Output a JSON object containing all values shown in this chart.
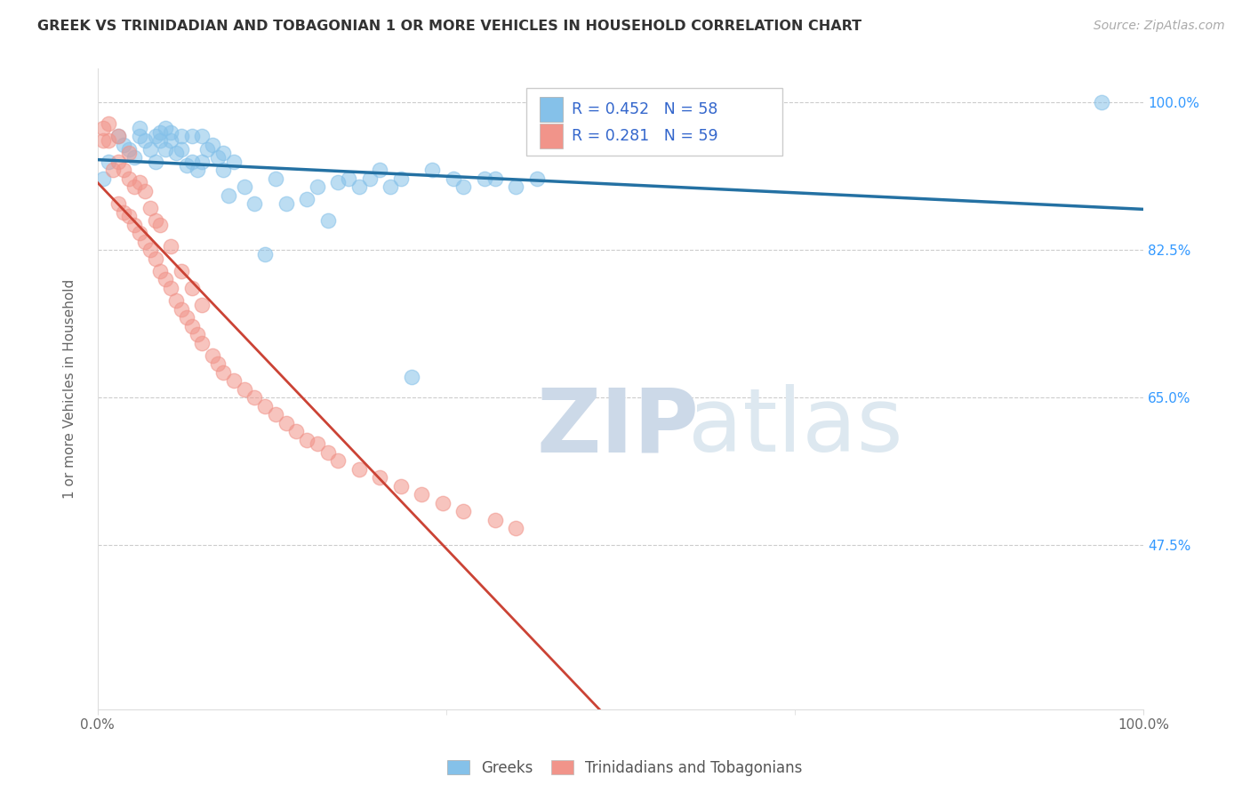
{
  "title": "GREEK VS TRINIDADIAN AND TOBAGONIAN 1 OR MORE VEHICLES IN HOUSEHOLD CORRELATION CHART",
  "source": "Source: ZipAtlas.com",
  "ylabel": "1 or more Vehicles in Household",
  "xlabel": "",
  "xlim": [
    0.0,
    1.0
  ],
  "ylim": [
    0.28,
    1.04
  ],
  "xtick_positions": [
    0.0,
    1.0
  ],
  "xtick_labels": [
    "0.0%",
    "100.0%"
  ],
  "ytick_positions": [
    0.475,
    0.65,
    0.825,
    1.0
  ],
  "ytick_labels": [
    "47.5%",
    "65.0%",
    "82.5%",
    "100.0%"
  ],
  "legend_blue_label": "Greeks",
  "legend_pink_label": "Trinidadians and Tobagonians",
  "R_blue": 0.452,
  "N_blue": 58,
  "R_pink": 0.281,
  "N_pink": 59,
  "blue_color": "#85c1e9",
  "pink_color": "#f1948a",
  "line_blue_color": "#2471a3",
  "line_pink_color": "#cb4335",
  "watermark_zip": "ZIP",
  "watermark_atlas": "atlas",
  "watermark_color": "#dce8f0",
  "greek_x": [
    0.005,
    0.01,
    0.02,
    0.025,
    0.03,
    0.035,
    0.04,
    0.04,
    0.045,
    0.05,
    0.055,
    0.055,
    0.06,
    0.06,
    0.065,
    0.065,
    0.07,
    0.07,
    0.075,
    0.08,
    0.08,
    0.085,
    0.09,
    0.09,
    0.095,
    0.1,
    0.1,
    0.105,
    0.11,
    0.115,
    0.12,
    0.12,
    0.125,
    0.13,
    0.14,
    0.15,
    0.16,
    0.17,
    0.18,
    0.2,
    0.21,
    0.22,
    0.23,
    0.24,
    0.25,
    0.26,
    0.27,
    0.28,
    0.29,
    0.3,
    0.32,
    0.34,
    0.35,
    0.37,
    0.38,
    0.4,
    0.42,
    0.96
  ],
  "greek_y": [
    0.91,
    0.93,
    0.96,
    0.95,
    0.945,
    0.935,
    0.96,
    0.97,
    0.955,
    0.945,
    0.93,
    0.96,
    0.955,
    0.965,
    0.945,
    0.97,
    0.955,
    0.965,
    0.94,
    0.945,
    0.96,
    0.925,
    0.93,
    0.96,
    0.92,
    0.93,
    0.96,
    0.945,
    0.95,
    0.935,
    0.92,
    0.94,
    0.89,
    0.93,
    0.9,
    0.88,
    0.82,
    0.91,
    0.88,
    0.885,
    0.9,
    0.86,
    0.905,
    0.91,
    0.9,
    0.91,
    0.92,
    0.9,
    0.91,
    0.675,
    0.92,
    0.91,
    0.9,
    0.91,
    0.91,
    0.9,
    0.91,
    1.0
  ],
  "trin_x": [
    0.005,
    0.005,
    0.01,
    0.01,
    0.015,
    0.02,
    0.02,
    0.02,
    0.025,
    0.025,
    0.03,
    0.03,
    0.03,
    0.035,
    0.035,
    0.04,
    0.04,
    0.045,
    0.045,
    0.05,
    0.05,
    0.055,
    0.055,
    0.06,
    0.06,
    0.065,
    0.07,
    0.07,
    0.075,
    0.08,
    0.08,
    0.085,
    0.09,
    0.09,
    0.095,
    0.1,
    0.1,
    0.11,
    0.115,
    0.12,
    0.13,
    0.14,
    0.15,
    0.16,
    0.17,
    0.18,
    0.19,
    0.2,
    0.21,
    0.22,
    0.23,
    0.25,
    0.27,
    0.29,
    0.31,
    0.33,
    0.35,
    0.38,
    0.4
  ],
  "trin_y": [
    0.955,
    0.97,
    0.955,
    0.975,
    0.92,
    0.88,
    0.93,
    0.96,
    0.87,
    0.92,
    0.865,
    0.91,
    0.94,
    0.855,
    0.9,
    0.845,
    0.905,
    0.835,
    0.895,
    0.825,
    0.875,
    0.815,
    0.86,
    0.8,
    0.855,
    0.79,
    0.78,
    0.83,
    0.765,
    0.755,
    0.8,
    0.745,
    0.735,
    0.78,
    0.725,
    0.715,
    0.76,
    0.7,
    0.69,
    0.68,
    0.67,
    0.66,
    0.65,
    0.64,
    0.63,
    0.62,
    0.61,
    0.6,
    0.595,
    0.585,
    0.575,
    0.565,
    0.555,
    0.545,
    0.535,
    0.525,
    0.515,
    0.505,
    0.495
  ]
}
